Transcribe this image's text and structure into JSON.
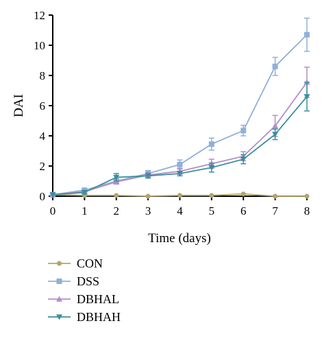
{
  "chart_data": {
    "type": "line",
    "xlabel": "Time (days)",
    "ylabel": "DAI",
    "x": [
      0,
      1,
      2,
      3,
      4,
      5,
      6,
      7,
      8
    ],
    "xlim": [
      0,
      8
    ],
    "ylim": [
      0,
      12
    ],
    "xticks": [
      "0",
      "1",
      "2",
      "3",
      "4",
      "5",
      "6",
      "7",
      "8"
    ],
    "yticks": [
      "0",
      "2",
      "4",
      "6",
      "8",
      "10",
      "12"
    ],
    "grid": false,
    "legend_position": "bottom-left",
    "series": [
      {
        "name": "CON",
        "color": "#b3a46b",
        "marker": "circle",
        "values": [
          0.1,
          0.05,
          0.05,
          0,
          0.05,
          0.05,
          0.15,
          0,
          0
        ],
        "errors": [
          0,
          0,
          0,
          0,
          0,
          0,
          0,
          0,
          0
        ]
      },
      {
        "name": "DSS",
        "color": "#8fb0d8",
        "marker": "square",
        "values": [
          0.1,
          0.4,
          1.0,
          1.5,
          2.1,
          3.45,
          4.35,
          8.6,
          10.7
        ],
        "errors": [
          0,
          0.1,
          0.15,
          0.2,
          0.3,
          0.4,
          0.35,
          0.6,
          1.1
        ]
      },
      {
        "name": "DBHAL",
        "color": "#b48cc8",
        "marker": "triangle-up",
        "values": [
          0.1,
          0.3,
          0.95,
          1.4,
          1.65,
          2.15,
          2.65,
          4.65,
          7.55
        ],
        "errors": [
          0,
          0.1,
          0.15,
          0.15,
          0.2,
          0.3,
          0.3,
          0.7,
          1.0
        ]
      },
      {
        "name": "DBHAH",
        "color": "#3a8f9e",
        "marker": "triangle-down",
        "values": [
          0.1,
          0.25,
          1.25,
          1.35,
          1.5,
          1.9,
          2.45,
          4.1,
          6.6
        ],
        "errors": [
          0,
          0.1,
          0.25,
          0.15,
          0.15,
          0.3,
          0.3,
          0.35,
          0.95
        ]
      }
    ]
  }
}
